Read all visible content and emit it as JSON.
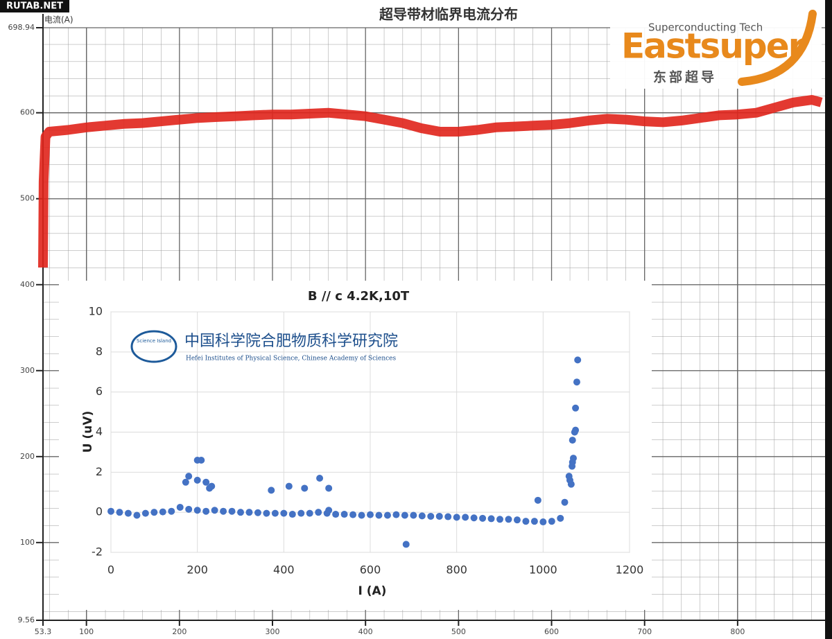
{
  "watermark": "RUTAB.NET",
  "logos": {
    "company_tagline": "Superconducting Tech",
    "company_name": "Eastsuper",
    "company_name_cn": "东部超导",
    "institute_badge": "Science Island",
    "institute_cn": "中国科学院合肥物质科学研究院",
    "institute_en": "Hefei Institutes of Physical Science, Chinese Academy of Sciences"
  },
  "chart_data": [
    {
      "type": "line",
      "title": "超导带材临界电流分布",
      "y_label": "电流(A)",
      "color": "#e0231b",
      "grid": true,
      "xlim": [
        53.3,
        894
      ],
      "xticks": [
        53.3,
        100,
        200,
        300,
        400,
        500,
        600,
        700,
        800
      ],
      "ylim": [
        9.56,
        698.94
      ],
      "yticks": [
        9.56,
        100,
        200,
        300,
        400,
        500,
        600,
        698.94
      ],
      "x": [
        53.3,
        54,
        56,
        60,
        80,
        100,
        120,
        140,
        160,
        180,
        200,
        220,
        240,
        260,
        280,
        300,
        320,
        340,
        360,
        380,
        400,
        420,
        440,
        460,
        480,
        500,
        520,
        540,
        560,
        580,
        600,
        620,
        640,
        660,
        680,
        700,
        720,
        740,
        760,
        780,
        800,
        820,
        840,
        860,
        880,
        890
      ],
      "values": [
        420,
        520,
        572,
        578,
        580,
        583,
        585,
        587,
        588,
        590,
        592,
        594,
        595,
        596,
        597,
        598,
        598,
        599,
        600,
        598,
        596,
        592,
        588,
        582,
        578,
        578,
        580,
        583,
        584,
        585,
        586,
        588,
        591,
        593,
        592,
        590,
        589,
        591,
        594,
        597,
        598,
        600,
        606,
        612,
        615,
        612
      ]
    },
    {
      "type": "scatter",
      "title": "B // c  4.2K,10T",
      "x_label": "I (A)",
      "y_label": "U (uV)",
      "color": "#4472c4",
      "grid": true,
      "xlim": [
        0,
        1200
      ],
      "xticks": [
        0,
        200,
        400,
        600,
        800,
        1000,
        1200
      ],
      "ylim": [
        -2,
        10
      ],
      "yticks": [
        -2,
        0,
        2,
        4,
        6,
        8,
        10
      ],
      "x": [
        0,
        20,
        40,
        60,
        80,
        100,
        120,
        140,
        160,
        180,
        200,
        220,
        240,
        260,
        280,
        300,
        320,
        340,
        360,
        380,
        400,
        420,
        440,
        460,
        480,
        500,
        520,
        540,
        560,
        580,
        600,
        620,
        640,
        660,
        680,
        700,
        720,
        740,
        760,
        780,
        800,
        820,
        840,
        860,
        880,
        900,
        920,
        940,
        960,
        980,
        1000,
        1020,
        1040,
        173,
        180,
        200,
        200,
        209,
        220,
        228,
        233,
        371,
        412,
        448,
        483,
        504,
        504,
        683,
        988,
        1050,
        1060,
        1062,
        1065,
        1067,
        1068,
        1070,
        1068,
        1073,
        1075,
        1075,
        1078,
        1080
      ],
      "values": [
        0.05,
        0.0,
        -0.05,
        -0.15,
        -0.05,
        0.0,
        0.02,
        0.05,
        0.25,
        0.15,
        0.1,
        0.05,
        0.1,
        0.05,
        0.05,
        0.0,
        0.0,
        -0.02,
        -0.05,
        -0.05,
        -0.05,
        -0.1,
        -0.05,
        -0.05,
        0.0,
        -0.05,
        -0.1,
        -0.1,
        -0.12,
        -0.15,
        -0.12,
        -0.15,
        -0.15,
        -0.12,
        -0.15,
        -0.15,
        -0.18,
        -0.2,
        -0.2,
        -0.22,
        -0.25,
        -0.25,
        -0.28,
        -0.3,
        -0.32,
        -0.35,
        -0.35,
        -0.38,
        -0.45,
        -0.45,
        -0.48,
        -0.45,
        -0.3,
        1.5,
        1.8,
        1.6,
        2.6,
        2.6,
        1.5,
        1.2,
        1.3,
        1.1,
        1.3,
        1.2,
        1.7,
        1.2,
        0.1,
        -1.6,
        0.6,
        0.5,
        1.8,
        1.6,
        1.4,
        2.3,
        2.5,
        2.7,
        3.6,
        4.0,
        4.1,
        5.2,
        6.5,
        7.6
      ]
    }
  ]
}
